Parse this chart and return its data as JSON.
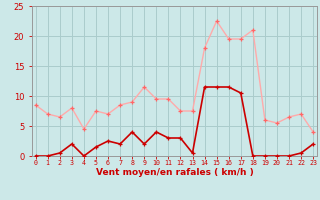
{
  "x": [
    0,
    1,
    2,
    3,
    4,
    5,
    6,
    7,
    8,
    9,
    10,
    11,
    12,
    13,
    14,
    15,
    16,
    17,
    18,
    19,
    20,
    21,
    22,
    23
  ],
  "rafales": [
    8.5,
    7.0,
    6.5,
    8.0,
    4.5,
    7.5,
    7.0,
    8.5,
    9.0,
    11.5,
    9.5,
    9.5,
    7.5,
    7.5,
    18.0,
    22.5,
    19.5,
    19.5,
    21.0,
    6.0,
    5.5,
    6.5,
    7.0,
    4.0
  ],
  "moyen": [
    0.0,
    0.0,
    0.5,
    2.0,
    0.0,
    1.5,
    2.5,
    2.0,
    4.0,
    2.0,
    4.0,
    3.0,
    3.0,
    0.5,
    11.5,
    11.5,
    11.5,
    10.5,
    0.0,
    0.0,
    0.0,
    0.0,
    0.5,
    2.0
  ],
  "bg_color": "#cce8e8",
  "grid_color": "#aacccc",
  "line_color_rafales": "#ffaaaa",
  "line_color_moyen": "#cc0000",
  "xlabel": "Vent moyen/en rafales ( km/h )",
  "xlabel_color": "#cc0000",
  "tick_color": "#cc0000",
  "ylim": [
    0,
    25
  ],
  "yticks": [
    0,
    5,
    10,
    15,
    20,
    25
  ]
}
